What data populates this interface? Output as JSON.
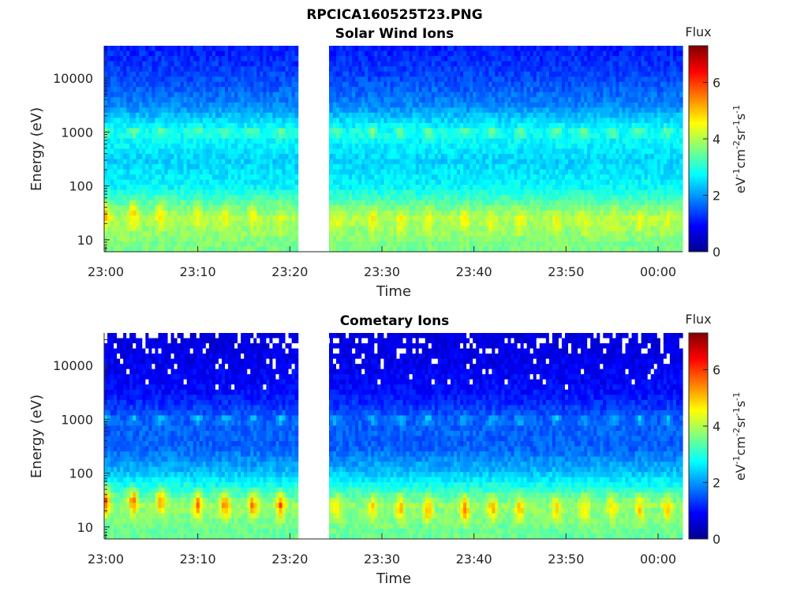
{
  "figure": {
    "title": "RPCICA160525T23.PNG"
  },
  "chart_data": [
    {
      "type": "heatmap",
      "title": "Solar Wind Ions",
      "xlabel": "Time",
      "ylabel": "Energy (eV)",
      "x_ticks": [
        "23:00",
        "23:10",
        "23:20",
        "23:30",
        "23:40",
        "23:50",
        "00:00"
      ],
      "y_ticks": [
        "10",
        "100",
        "1000",
        "10000"
      ],
      "y_tick_values": [
        10,
        100,
        1000,
        10000
      ],
      "y_scale": "log",
      "ylim": [
        6,
        40000
      ],
      "data_gap": [
        "23:21",
        "23:24"
      ],
      "colorbar": {
        "title": "Flux",
        "label": "eV-1cm-2sr-1s-1",
        "ticks": [
          "0",
          "2",
          "4",
          "6"
        ],
        "tick_values": [
          0,
          2,
          4,
          6
        ],
        "range": [
          0,
          7.3
        ],
        "colormap": "jet"
      },
      "flux_profile": [
        {
          "energy": 8,
          "flux": 3.6
        },
        {
          "energy": 25,
          "flux": 4.0
        },
        {
          "energy": 100,
          "flux": 2.7
        },
        {
          "energy": 300,
          "flux": 2.4
        },
        {
          "energy": 1000,
          "flux": 2.9
        },
        {
          "energy": 3000,
          "flux": 1.9
        },
        {
          "energy": 10000,
          "flux": 1.4
        },
        {
          "energy": 40000,
          "flux": 1.1
        }
      ],
      "bursts": [
        {
          "time": "23:00",
          "energy": 30,
          "flux": 5.1
        },
        {
          "time": "23:03",
          "energy": 30,
          "flux": 5.0
        },
        {
          "time": "23:06",
          "energy": 30,
          "flux": 4.8
        },
        {
          "time": "23:10",
          "energy": 25,
          "flux": 4.6
        },
        {
          "time": "23:13",
          "energy": 25,
          "flux": 4.5
        },
        {
          "time": "23:16",
          "energy": 25,
          "flux": 4.5
        },
        {
          "time": "23:19",
          "energy": 25,
          "flux": 4.5
        },
        {
          "time": "23:25",
          "energy": 22,
          "flux": 4.6
        },
        {
          "time": "23:29",
          "energy": 22,
          "flux": 4.6
        },
        {
          "time": "23:32",
          "energy": 22,
          "flux": 4.7
        },
        {
          "time": "23:35",
          "energy": 22,
          "flux": 4.6
        },
        {
          "time": "23:39",
          "energy": 22,
          "flux": 4.7
        },
        {
          "time": "23:42",
          "energy": 22,
          "flux": 4.6
        },
        {
          "time": "23:45",
          "energy": 22,
          "flux": 4.6
        },
        {
          "time": "23:49",
          "energy": 22,
          "flux": 4.6
        },
        {
          "time": "23:52",
          "energy": 22,
          "flux": 4.5
        },
        {
          "time": "23:55",
          "energy": 22,
          "flux": 4.5
        },
        {
          "time": "23:58",
          "energy": 22,
          "flux": 4.5
        },
        {
          "time": "00:01",
          "energy": 22,
          "flux": 4.5
        }
      ]
    },
    {
      "type": "heatmap",
      "title": "Cometary Ions",
      "xlabel": "Time",
      "ylabel": "Energy (eV)",
      "x_ticks": [
        "23:00",
        "23:10",
        "23:20",
        "23:30",
        "23:40",
        "23:50",
        "00:00"
      ],
      "y_ticks": [
        "10",
        "100",
        "1000",
        "10000"
      ],
      "y_tick_values": [
        10,
        100,
        1000,
        10000
      ],
      "y_scale": "log",
      "ylim": [
        6,
        40000
      ],
      "data_gap": [
        "23:21",
        "23:24"
      ],
      "colorbar": {
        "title": "Flux",
        "label": "eV-1cm-2sr-1s-1",
        "ticks": [
          "0",
          "2",
          "4",
          "6"
        ],
        "tick_values": [
          0,
          2,
          4,
          6
        ],
        "range": [
          0,
          7.3
        ],
        "colormap": "jet"
      },
      "flux_profile": [
        {
          "energy": 8,
          "flux": 3.5
        },
        {
          "energy": 25,
          "flux": 3.8
        },
        {
          "energy": 100,
          "flux": 2.3
        },
        {
          "energy": 300,
          "flux": 1.6
        },
        {
          "energy": 1000,
          "flux": 1.6
        },
        {
          "energy": 3000,
          "flux": 1.0
        },
        {
          "energy": 10000,
          "flux": 0.8
        },
        {
          "energy": 40000,
          "flux": 0.6
        }
      ],
      "bursts": [
        {
          "time": "23:00",
          "energy": 30,
          "flux": 5.9
        },
        {
          "time": "23:03",
          "energy": 30,
          "flux": 5.8
        },
        {
          "time": "23:06",
          "energy": 30,
          "flux": 5.6
        },
        {
          "time": "23:10",
          "energy": 25,
          "flux": 5.8
        },
        {
          "time": "23:13",
          "energy": 25,
          "flux": 5.7
        },
        {
          "time": "23:16",
          "energy": 25,
          "flux": 5.7
        },
        {
          "time": "23:19",
          "energy": 25,
          "flux": 5.8
        },
        {
          "time": "23:25",
          "energy": 22,
          "flux": 5.0
        },
        {
          "time": "23:29",
          "energy": 22,
          "flux": 5.0
        },
        {
          "time": "23:32",
          "energy": 22,
          "flux": 5.4
        },
        {
          "time": "23:35",
          "energy": 22,
          "flux": 5.5
        },
        {
          "time": "23:39",
          "energy": 22,
          "flux": 5.6
        },
        {
          "time": "23:42",
          "energy": 22,
          "flux": 5.3
        },
        {
          "time": "23:45",
          "energy": 22,
          "flux": 5.4
        },
        {
          "time": "23:49",
          "energy": 22,
          "flux": 5.2
        },
        {
          "time": "23:52",
          "energy": 22,
          "flux": 5.0
        },
        {
          "time": "23:55",
          "energy": 22,
          "flux": 5.0
        },
        {
          "time": "23:58",
          "energy": 22,
          "flux": 5.0
        },
        {
          "time": "00:01",
          "energy": 22,
          "flux": 5.2
        }
      ]
    }
  ]
}
